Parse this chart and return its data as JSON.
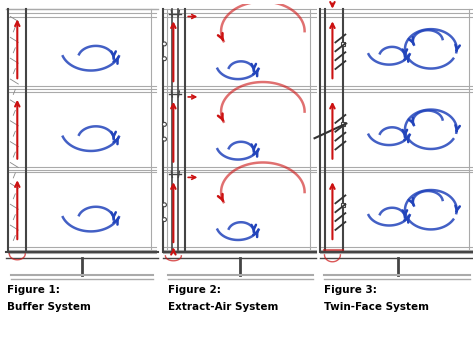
{
  "background_color": "#ffffff",
  "red_color": "#cc1111",
  "blue_color": "#2244bb",
  "gray_color": "#999999",
  "dark_gray": "#333333",
  "light_gray": "#aaaaaa",
  "line_color": "#444444",
  "fig1": {
    "label1": "Figure 1:",
    "label2": "Buffer System"
  },
  "fig2": {
    "label1": "Figure 2:",
    "label2": "Extract-Air System"
  },
  "fig3": {
    "label1": "Figure 3:",
    "label2": "Twin-Face System"
  }
}
